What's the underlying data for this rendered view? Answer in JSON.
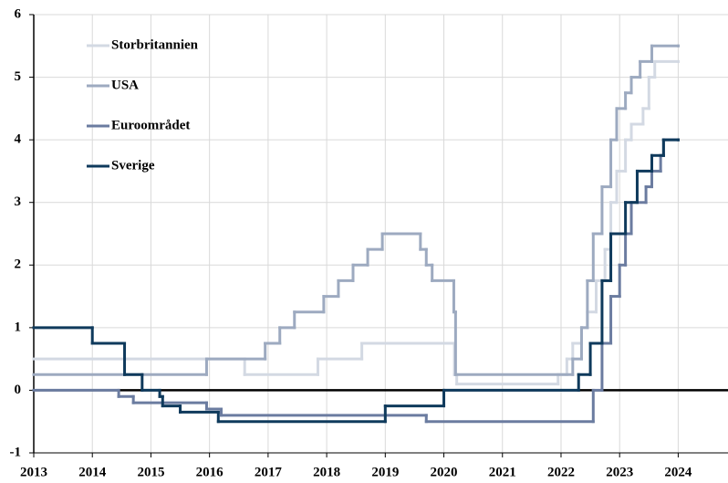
{
  "chart_data": {
    "type": "line",
    "drawstyle": "steps-post",
    "grid": true,
    "legend": "upper left",
    "xlim": [
      2013,
      2024.85
    ],
    "xticks": [
      2013,
      2014,
      2015,
      2016,
      2017,
      2018,
      2019,
      2020,
      2021,
      2022,
      2023,
      2024
    ],
    "ylim": [
      -1,
      6
    ],
    "yticks": [
      -1,
      0,
      1,
      2,
      3,
      4,
      5,
      6
    ],
    "series": [
      {
        "name": "Storbritannien",
        "color": "#d3d9e3",
        "x": [
          2013,
          2016.6,
          2017.85,
          2018.6,
          2020.18,
          2020.22,
          2021.95,
          2022.1,
          2022.2,
          2022.35,
          2022.45,
          2022.6,
          2022.75,
          2022.85,
          2022.95,
          2023.1,
          2023.2,
          2023.4,
          2023.5,
          2023.6,
          2024
        ],
        "values": [
          0.5,
          0.25,
          0.5,
          0.75,
          0.25,
          0.1,
          0.25,
          0.5,
          0.75,
          1.0,
          1.25,
          1.75,
          2.25,
          3.0,
          3.5,
          4.0,
          4.25,
          4.5,
          5.0,
          5.25,
          5.25
        ]
      },
      {
        "name": "USA",
        "color": "#9daac0",
        "x": [
          2013,
          2015.95,
          2016.95,
          2017.2,
          2017.45,
          2017.95,
          2018.2,
          2018.45,
          2018.7,
          2018.95,
          2019.6,
          2019.7,
          2019.8,
          2020.17,
          2020.2,
          2022.2,
          2022.35,
          2022.45,
          2022.55,
          2022.7,
          2022.85,
          2022.95,
          2023.1,
          2023.2,
          2023.35,
          2023.55,
          2024
        ],
        "values": [
          0.25,
          0.5,
          0.75,
          1.0,
          1.25,
          1.5,
          1.75,
          2.0,
          2.25,
          2.5,
          2.25,
          2.0,
          1.75,
          1.25,
          0.25,
          0.5,
          1.0,
          1.75,
          2.5,
          3.25,
          4.0,
          4.5,
          4.75,
          5.0,
          5.25,
          5.5,
          5.5
        ]
      },
      {
        "name": "Euroområdet",
        "color": "#6b7ca0",
        "x": [
          2013,
          2014.45,
          2014.7,
          2015.95,
          2016.2,
          2019.7,
          2022.55,
          2022.7,
          2022.85,
          2023.0,
          2023.1,
          2023.2,
          2023.45,
          2023.55,
          2023.7,
          2023.75,
          2024
        ],
        "values": [
          0,
          -0.1,
          -0.2,
          -0.3,
          -0.4,
          -0.5,
          0,
          0.75,
          1.5,
          2.0,
          2.5,
          3.0,
          3.25,
          3.5,
          3.75,
          4.0,
          4.0
        ]
      },
      {
        "name": "Sverige",
        "color": "#0f3a5c",
        "x": [
          2013,
          2014.0,
          2014.55,
          2014.85,
          2015.15,
          2015.2,
          2015.5,
          2016.15,
          2019.0,
          2020.0,
          2022.3,
          2022.5,
          2022.7,
          2022.85,
          2023.1,
          2023.3,
          2023.55,
          2023.75,
          2024
        ],
        "values": [
          1.0,
          0.75,
          0.25,
          0,
          -0.1,
          -0.25,
          -0.35,
          -0.5,
          -0.25,
          0,
          0.25,
          0.75,
          1.75,
          2.5,
          3.0,
          3.5,
          3.75,
          4.0,
          4.0
        ]
      }
    ]
  }
}
